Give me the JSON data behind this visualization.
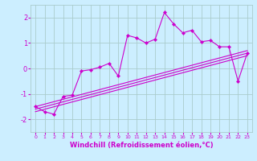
{
  "xlabel": "Windchill (Refroidissement éolien,°C)",
  "bg_color": "#cceeff",
  "grid_color": "#aacccc",
  "line_color": "#cc00cc",
  "xlim": [
    -0.5,
    23.5
  ],
  "ylim": [
    -2.5,
    2.5
  ],
  "yticks": [
    -2,
    -1,
    0,
    1,
    2
  ],
  "xticks": [
    0,
    1,
    2,
    3,
    4,
    5,
    6,
    7,
    8,
    9,
    10,
    11,
    12,
    13,
    14,
    15,
    16,
    17,
    18,
    19,
    20,
    21,
    22,
    23
  ],
  "main_x": [
    0,
    1,
    2,
    3,
    4,
    5,
    6,
    7,
    8,
    9,
    10,
    11,
    12,
    13,
    14,
    15,
    16,
    17,
    18,
    19,
    20,
    21,
    22,
    23
  ],
  "main_y": [
    -1.5,
    -1.7,
    -1.8,
    -1.1,
    -1.05,
    -0.1,
    -0.05,
    0.05,
    0.2,
    -0.3,
    1.3,
    1.2,
    1.0,
    1.15,
    2.2,
    1.75,
    1.4,
    1.5,
    1.05,
    1.1,
    0.85,
    0.85,
    -0.5,
    0.6
  ],
  "reg_lines": [
    {
      "x0": 0,
      "y0": -1.5,
      "x1": 23,
      "y1": 0.7
    },
    {
      "x0": 0,
      "y0": -1.6,
      "x1": 23,
      "y1": 0.6
    },
    {
      "x0": 0,
      "y0": -1.7,
      "x1": 23,
      "y1": 0.5
    }
  ],
  "xlabel_fontsize": 6,
  "xlabel_fontweight": "bold",
  "ytick_fontsize": 6,
  "xtick_fontsize": 4.5
}
